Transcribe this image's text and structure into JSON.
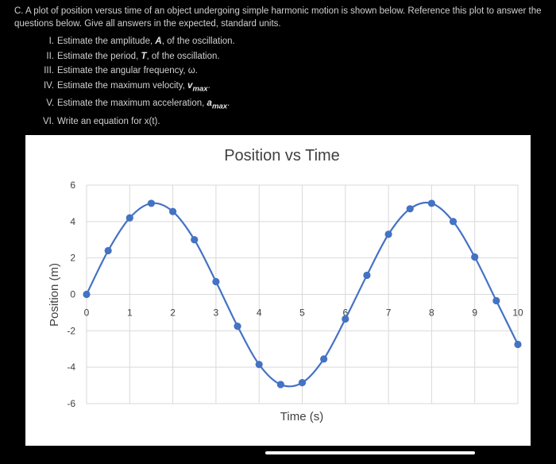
{
  "question": {
    "intro": "C. A plot of position versus time of an object undergoing simple harmonic motion is shown below. Reference this plot to answer the questions below. Give all answers in the expected, standard units.",
    "items": [
      {
        "num": "I.",
        "text": "Estimate the amplitude, ",
        "var": "A",
        "tail": ", of the oscillation."
      },
      {
        "num": "II.",
        "text": "Estimate the period, ",
        "var": "T",
        "tail": ", of the oscillation."
      },
      {
        "num": "III.",
        "text": "Estimate the angular frequency, ",
        "var": "ω",
        "tail": "."
      },
      {
        "num": "IV.",
        "text": "Estimate the maximum velocity, ",
        "var": "v",
        "sub": "max",
        "tail": "."
      },
      {
        "num": "V.",
        "text": "Estimate the maximum acceleration, ",
        "var": "a",
        "sub": "max",
        "tail": "."
      },
      {
        "num": "VI.",
        "text": "Write an equation for x(t).",
        "var": "",
        "tail": ""
      }
    ]
  },
  "chart_data": {
    "type": "scatter",
    "title": "Position vs Time",
    "xlabel": "Time (s)",
    "ylabel": "Position (m)",
    "xlim": [
      0,
      10
    ],
    "ylim": [
      -6,
      6
    ],
    "x_ticks": [
      0,
      1,
      2,
      3,
      4,
      5,
      6,
      7,
      8,
      9,
      10
    ],
    "y_ticks": [
      -6,
      -4,
      -2,
      0,
      2,
      4,
      6
    ],
    "grid": true,
    "series": [
      {
        "x": [
          0,
          0.5,
          1.0,
          1.5,
          2.0,
          2.5,
          3.0,
          3.5,
          4.0,
          4.5,
          5.0,
          5.5,
          6.0,
          6.5,
          7.0,
          7.5,
          8.0,
          8.5,
          9.0,
          9.5,
          10.0
        ],
        "y": [
          0,
          2.4,
          4.2,
          5.0,
          4.55,
          3.0,
          0.7,
          -1.75,
          -3.85,
          -4.95,
          -4.85,
          -3.55,
          -1.35,
          1.05,
          3.3,
          4.7,
          5.0,
          4.0,
          2.05,
          -0.35,
          -2.75
        ]
      }
    ],
    "colors": {
      "line": "#4472c4",
      "marker": "#4472c4",
      "grid": "#d9d9d9"
    }
  }
}
